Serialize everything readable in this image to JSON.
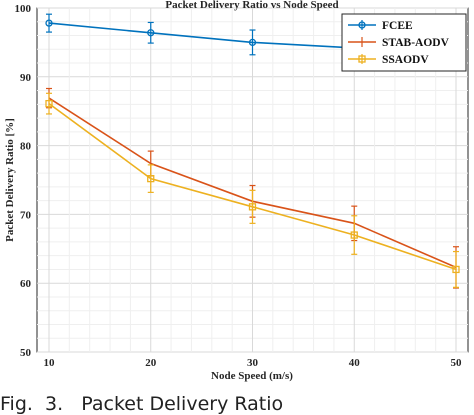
{
  "chart_data": {
    "type": "line",
    "title": "Packet Delivery Ratio vs Node Speed",
    "xlabel": "Node Speed (m/s)",
    "ylabel": "Packet Delivery Ratio [%]",
    "x": [
      10,
      20,
      30,
      40,
      50
    ],
    "xlim": [
      10,
      50
    ],
    "ylim": [
      50,
      100
    ],
    "xticks": [
      "10",
      "20",
      "30",
      "40",
      "50"
    ],
    "yticks": [
      "50",
      "60",
      "70",
      "80",
      "90",
      "100"
    ],
    "grid": true,
    "legend_position": "top-right",
    "series": [
      {
        "name": "FCEE",
        "color": "#0072BD",
        "marker": "circle",
        "values": [
          97.8,
          96.4,
          95.0,
          94.2,
          96.4
        ],
        "errors": [
          1.3,
          1.5,
          1.8,
          2.0,
          2.4
        ]
      },
      {
        "name": "STAB-AODV",
        "color": "#D95319",
        "marker": "none",
        "values": [
          86.9,
          77.4,
          71.9,
          68.7,
          62.3
        ],
        "errors": [
          1.4,
          1.8,
          2.3,
          2.5,
          3.0
        ]
      },
      {
        "name": "SSAODV",
        "color": "#EDB120",
        "marker": "square",
        "values": [
          86.1,
          75.2,
          71.1,
          67.0,
          62.0
        ],
        "errors": [
          1.5,
          2.0,
          2.4,
          2.8,
          2.6
        ]
      }
    ]
  },
  "caption": "Fig.  3.   Packet Delivery Ratio"
}
